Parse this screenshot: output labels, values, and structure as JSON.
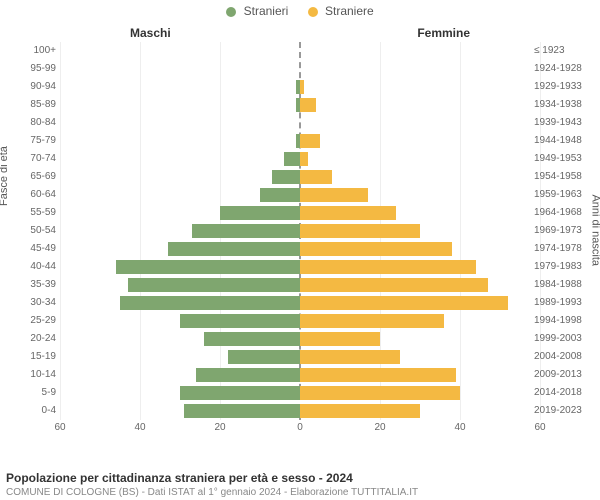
{
  "legend": {
    "male": {
      "label": "Stranieri",
      "color": "#7fa66f"
    },
    "female": {
      "label": "Straniere",
      "color": "#f4b942"
    }
  },
  "column_titles": {
    "male": "Maschi",
    "female": "Femmine"
  },
  "axis_titles": {
    "left": "Fasce di età",
    "right": "Anni di nascita"
  },
  "chart": {
    "type": "population-pyramid",
    "xmax": 60,
    "xtick_step": 20,
    "xticks_left": [
      60,
      40,
      20,
      0
    ],
    "xticks_right": [
      20,
      40,
      60
    ],
    "bar_colors": {
      "male": "#7fa66f",
      "female": "#f4b942"
    },
    "background_color": "#ffffff",
    "grid_color": "#eeeeee",
    "rows": [
      {
        "age": "100+",
        "birth": "≤ 1923",
        "male": 0,
        "female": 0
      },
      {
        "age": "95-99",
        "birth": "1924-1928",
        "male": 0,
        "female": 0
      },
      {
        "age": "90-94",
        "birth": "1929-1933",
        "male": 1,
        "female": 1
      },
      {
        "age": "85-89",
        "birth": "1934-1938",
        "male": 1,
        "female": 4
      },
      {
        "age": "80-84",
        "birth": "1939-1943",
        "male": 0,
        "female": 0
      },
      {
        "age": "75-79",
        "birth": "1944-1948",
        "male": 1,
        "female": 5
      },
      {
        "age": "70-74",
        "birth": "1949-1953",
        "male": 4,
        "female": 2
      },
      {
        "age": "65-69",
        "birth": "1954-1958",
        "male": 7,
        "female": 8
      },
      {
        "age": "60-64",
        "birth": "1959-1963",
        "male": 10,
        "female": 17
      },
      {
        "age": "55-59",
        "birth": "1964-1968",
        "male": 20,
        "female": 24
      },
      {
        "age": "50-54",
        "birth": "1969-1973",
        "male": 27,
        "female": 30
      },
      {
        "age": "45-49",
        "birth": "1974-1978",
        "male": 33,
        "female": 38
      },
      {
        "age": "40-44",
        "birth": "1979-1983",
        "male": 46,
        "female": 44
      },
      {
        "age": "35-39",
        "birth": "1984-1988",
        "male": 43,
        "female": 47
      },
      {
        "age": "30-34",
        "birth": "1989-1993",
        "male": 45,
        "female": 52
      },
      {
        "age": "25-29",
        "birth": "1994-1998",
        "male": 30,
        "female": 36
      },
      {
        "age": "20-24",
        "birth": "1999-2003",
        "male": 24,
        "female": 20
      },
      {
        "age": "15-19",
        "birth": "2004-2008",
        "male": 18,
        "female": 25
      },
      {
        "age": "10-14",
        "birth": "2009-2013",
        "male": 26,
        "female": 39
      },
      {
        "age": "5-9",
        "birth": "2014-2018",
        "male": 30,
        "female": 40
      },
      {
        "age": "0-4",
        "birth": "2019-2023",
        "male": 29,
        "female": 30
      }
    ]
  },
  "footer": {
    "title": "Popolazione per cittadinanza straniera per età e sesso - 2024",
    "subtitle": "COMUNE DI COLOGNE (BS) - Dati ISTAT al 1° gennaio 2024 - Elaborazione TUTTITALIA.IT"
  }
}
